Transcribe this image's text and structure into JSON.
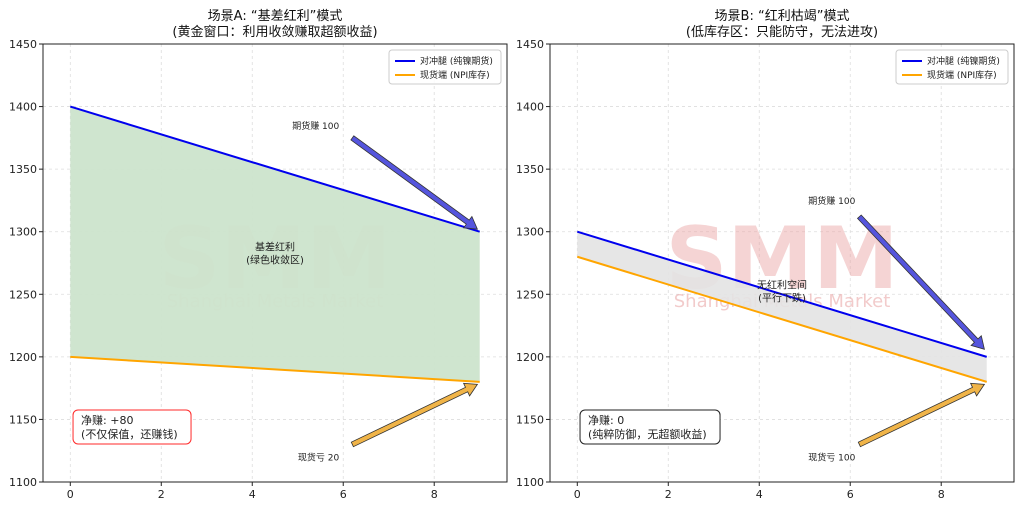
{
  "watermark": {
    "logo": "SMM",
    "text": "Shanghai Metals Market"
  },
  "colors": {
    "hedge": "#0000ee",
    "spot": "#ffa500",
    "fill_a": "#cce4cc",
    "fill_b": "#e3e3e3",
    "arrow_blue": "#5555dd",
    "arrow_orange": "#f0b448",
    "net_a": "#ff2a2a",
    "net_b": "#222222",
    "band_a_text": "#1a7a1a",
    "band_b_text": "#555555"
  },
  "chart_data": [
    {
      "type": "line",
      "title_line1": "场景A: “基差红利”模式",
      "title_line2": "(黄金窗口：利用收敛赚取超额收益)",
      "xlim": [
        -0.6,
        9.6
      ],
      "ylim": [
        1100,
        1450
      ],
      "xticks": [
        0,
        2,
        4,
        6,
        8
      ],
      "yticks": [
        1100,
        1150,
        1200,
        1250,
        1300,
        1350,
        1400,
        1450
      ],
      "grid": true,
      "legend_position": "top-right",
      "series": [
        {
          "name": "对冲腿 (纯镍期货)",
          "key": "hedge",
          "x": [
            0,
            9
          ],
          "y": [
            1400,
            1300
          ]
        },
        {
          "name": "现货端 (NPI库存)",
          "key": "spot",
          "x": [
            0,
            9
          ],
          "y": [
            1200,
            1180
          ]
        }
      ],
      "band": {
        "label_line1": "基差红利",
        "label_line2": "(绿色收敛区)",
        "label_x": 4.5,
        "label_y": 1280
      },
      "annotations": [
        {
          "text": "期货赚 100",
          "text_x": 6.0,
          "text_y": 1382,
          "arrow_from": [
            6.2,
            1375
          ],
          "arrow_to": [
            8.95,
            1302
          ]
        },
        {
          "text": "现货亏 20",
          "text_x": 6.0,
          "text_y": 1122,
          "arrow_from": [
            6.2,
            1130
          ],
          "arrow_to": [
            8.95,
            1178
          ]
        }
      ],
      "net_box": {
        "line1": "净赚: +80",
        "line2": "(不仅保值，还赚钱)",
        "x": 0.5,
        "y": 1140
      }
    },
    {
      "type": "line",
      "title_line1": "场景B: “红利枯竭”模式",
      "title_line2": "(低库存区：只能防守，无法进攻)",
      "xlim": [
        -0.6,
        9.6
      ],
      "ylim": [
        1100,
        1450
      ],
      "xticks": [
        0,
        2,
        4,
        6,
        8
      ],
      "yticks": [
        1100,
        1150,
        1200,
        1250,
        1300,
        1350,
        1400,
        1450
      ],
      "grid": true,
      "legend_position": "top-right",
      "series": [
        {
          "name": "对冲腿 (纯镍期货)",
          "key": "hedge",
          "x": [
            0,
            9
          ],
          "y": [
            1300,
            1200
          ]
        },
        {
          "name": "现货端 (NPI库存)",
          "key": "spot",
          "x": [
            0,
            9
          ],
          "y": [
            1280,
            1180
          ]
        }
      ],
      "band": {
        "label_line1": "无红利空间",
        "label_line2": "(平行下跌)",
        "label_x": 4.5,
        "label_y": 1250
      },
      "annotations": [
        {
          "text": "期货赚 100",
          "text_x": 6.2,
          "text_y": 1322,
          "arrow_from": [
            6.2,
            1312
          ],
          "arrow_to": [
            8.95,
            1206
          ]
        },
        {
          "text": "现货亏 100",
          "text_x": 6.2,
          "text_y": 1122,
          "arrow_from": [
            6.2,
            1130
          ],
          "arrow_to": [
            8.95,
            1178
          ]
        }
      ],
      "net_box": {
        "line1": "净赚: 0",
        "line2": "(纯粹防御，无超额收益)",
        "x": 0.5,
        "y": 1140
      }
    }
  ]
}
